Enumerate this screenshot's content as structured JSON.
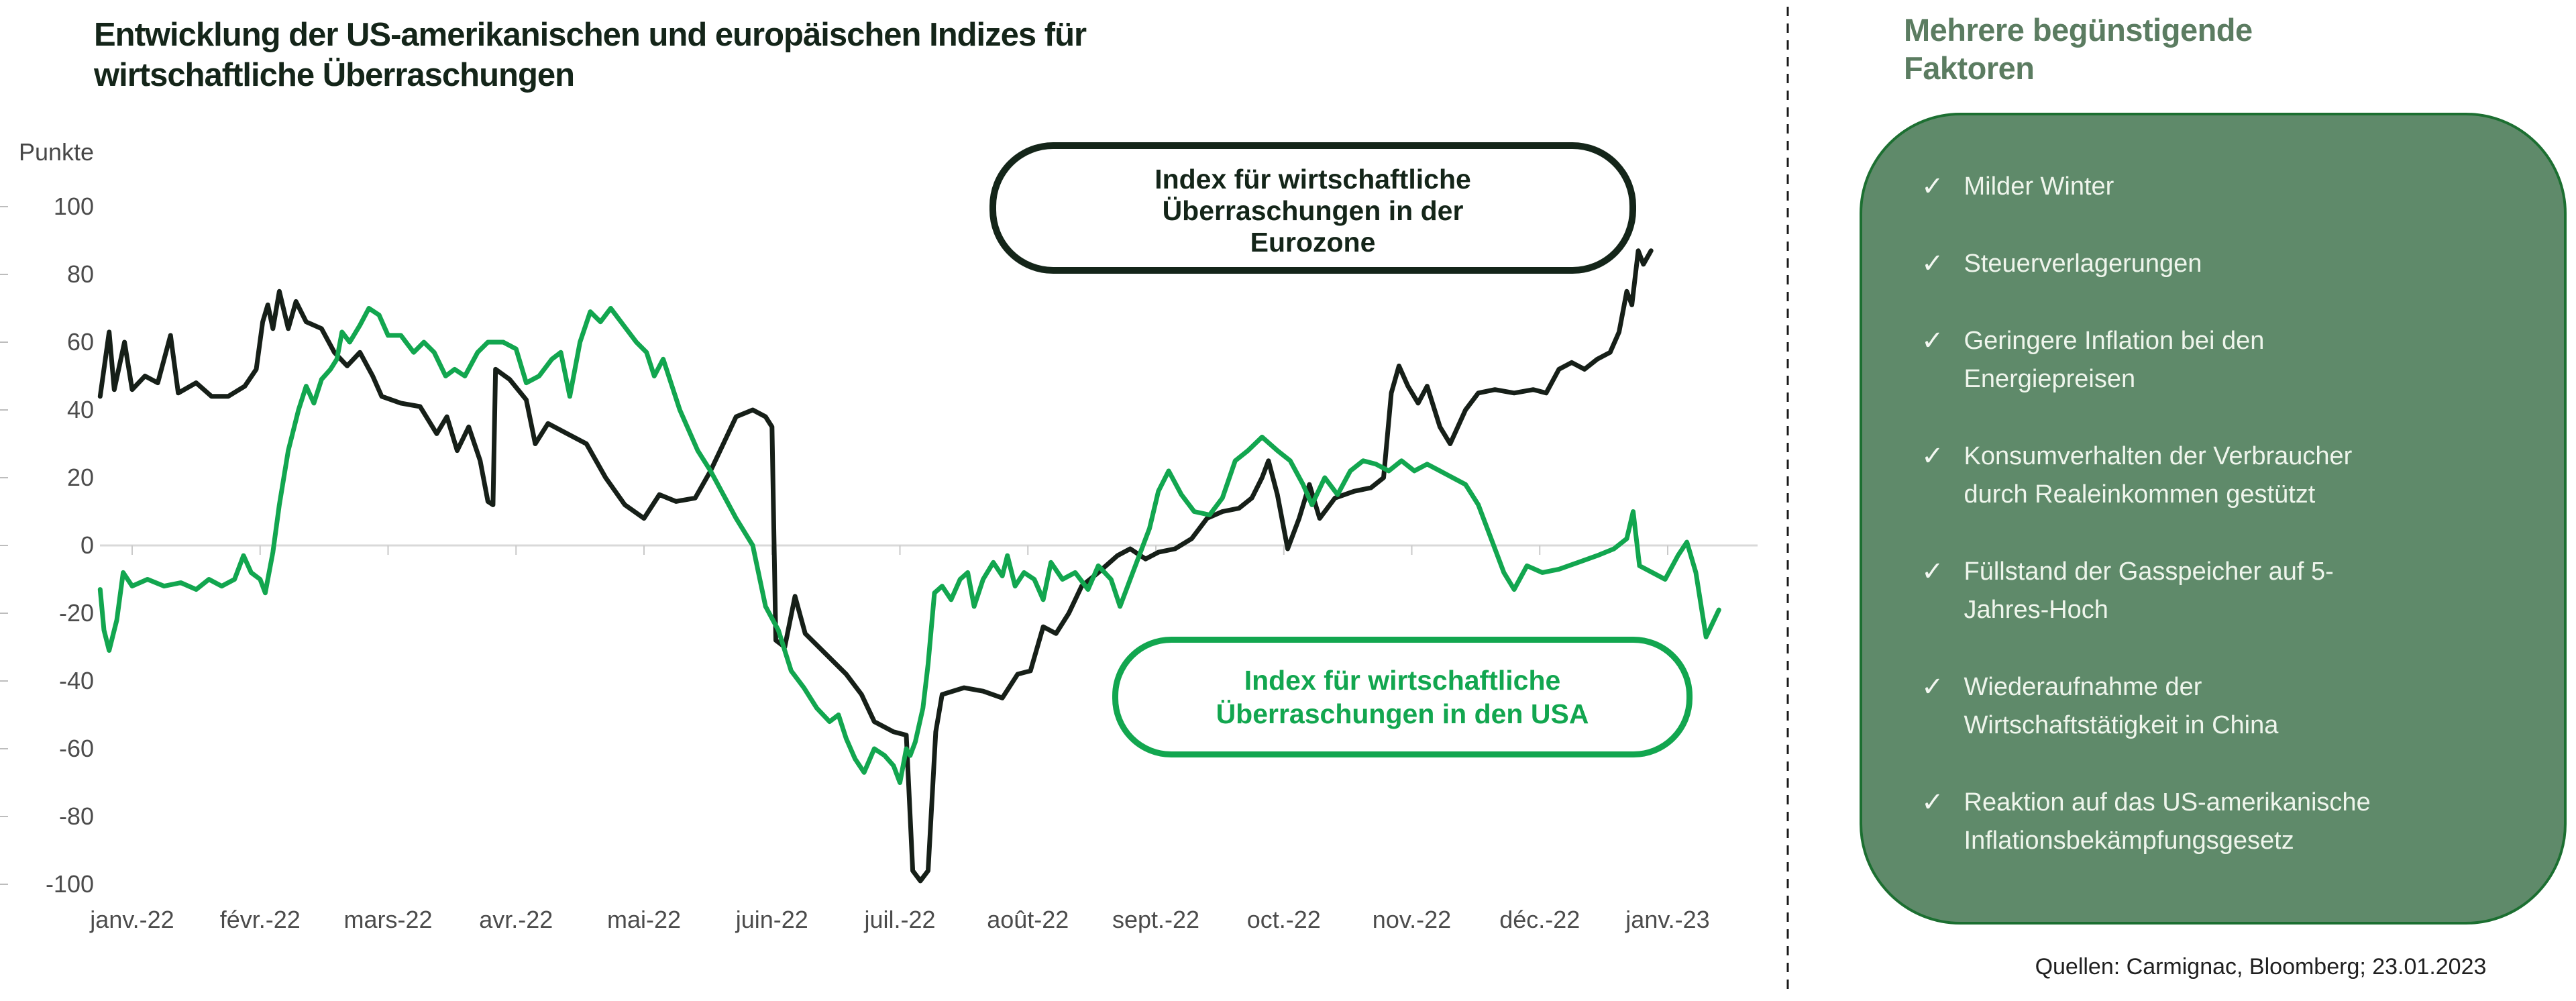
{
  "title": {
    "line1": "Entwicklung der US-amerikanischen und europäischen Indizes für",
    "line2": "wirtschaftliche Überraschungen"
  },
  "chart_data": {
    "type": "line",
    "title": "Entwicklung der US-amerikanischen und europäischen Indizes für wirtschaftliche Überraschungen",
    "ylabel": "Punkte",
    "xlabel": "",
    "ylim": [
      -100,
      100
    ],
    "grid": "zero-line-only",
    "legend_position": "inline-callouts",
    "yticks": [
      100,
      80,
      60,
      40,
      20,
      0,
      -20,
      -40,
      -60,
      -80,
      -100
    ],
    "x_categories": [
      "janv.-22",
      "févr.-22",
      "mars-22",
      "avr.-22",
      "mai-22",
      "juin-22",
      "juil.-22",
      "août-22",
      "sept.-22",
      "oct.-22",
      "nov.-22",
      "déc.-22",
      "janv.-23"
    ],
    "x_unit": "months since janv.-22 tick (0 = janv.-22, 12 = janv.-23)",
    "series": [
      {
        "name": "Index für wirtschaftliche Überraschungen in der Eurozone",
        "color": "#161f18",
        "points": [
          [
            -0.25,
            44
          ],
          [
            -0.18,
            63
          ],
          [
            -0.14,
            46
          ],
          [
            -0.06,
            60
          ],
          [
            0.0,
            46
          ],
          [
            0.1,
            50
          ],
          [
            0.2,
            48
          ],
          [
            0.3,
            62
          ],
          [
            0.36,
            45
          ],
          [
            0.5,
            48
          ],
          [
            0.62,
            44
          ],
          [
            0.75,
            44
          ],
          [
            0.88,
            47
          ],
          [
            0.97,
            52
          ],
          [
            1.02,
            66
          ],
          [
            1.06,
            71
          ],
          [
            1.1,
            64
          ],
          [
            1.15,
            75
          ],
          [
            1.22,
            64
          ],
          [
            1.28,
            72
          ],
          [
            1.36,
            66
          ],
          [
            1.48,
            64
          ],
          [
            1.58,
            57
          ],
          [
            1.68,
            53
          ],
          [
            1.78,
            57
          ],
          [
            1.88,
            50
          ],
          [
            1.95,
            44
          ],
          [
            2.1,
            42
          ],
          [
            2.25,
            41
          ],
          [
            2.38,
            33
          ],
          [
            2.46,
            38
          ],
          [
            2.54,
            28
          ],
          [
            2.63,
            35
          ],
          [
            2.72,
            25
          ],
          [
            2.78,
            13
          ],
          [
            2.82,
            12
          ],
          [
            2.84,
            52
          ],
          [
            2.95,
            49
          ],
          [
            3.08,
            43
          ],
          [
            3.15,
            30
          ],
          [
            3.25,
            36
          ],
          [
            3.4,
            33
          ],
          [
            3.55,
            30
          ],
          [
            3.7,
            20
          ],
          [
            3.85,
            12
          ],
          [
            4.0,
            8
          ],
          [
            4.12,
            15
          ],
          [
            4.25,
            13
          ],
          [
            4.4,
            14
          ],
          [
            4.52,
            22
          ],
          [
            4.62,
            30
          ],
          [
            4.72,
            38
          ],
          [
            4.85,
            40
          ],
          [
            4.95,
            38
          ],
          [
            5.0,
            35
          ],
          [
            5.03,
            -28
          ],
          [
            5.1,
            -30
          ],
          [
            5.18,
            -15
          ],
          [
            5.26,
            -26
          ],
          [
            5.42,
            -32
          ],
          [
            5.58,
            -38
          ],
          [
            5.7,
            -44
          ],
          [
            5.8,
            -52
          ],
          [
            5.95,
            -55
          ],
          [
            6.05,
            -56
          ],
          [
            6.1,
            -96
          ],
          [
            6.16,
            -99
          ],
          [
            6.22,
            -96
          ],
          [
            6.28,
            -55
          ],
          [
            6.33,
            -44
          ],
          [
            6.5,
            -42
          ],
          [
            6.65,
            -43
          ],
          [
            6.8,
            -45
          ],
          [
            6.92,
            -38
          ],
          [
            7.02,
            -37
          ],
          [
            7.12,
            -24
          ],
          [
            7.22,
            -26
          ],
          [
            7.32,
            -20
          ],
          [
            7.42,
            -12
          ],
          [
            7.55,
            -8
          ],
          [
            7.7,
            -3
          ],
          [
            7.8,
            -1
          ],
          [
            7.92,
            -4
          ],
          [
            8.02,
            -2
          ],
          [
            8.15,
            -1
          ],
          [
            8.28,
            2
          ],
          [
            8.4,
            8
          ],
          [
            8.52,
            10
          ],
          [
            8.65,
            11
          ],
          [
            8.75,
            14
          ],
          [
            8.83,
            20
          ],
          [
            8.88,
            25
          ],
          [
            8.95,
            15
          ],
          [
            9.03,
            -1
          ],
          [
            9.12,
            8
          ],
          [
            9.2,
            18
          ],
          [
            9.28,
            8
          ],
          [
            9.4,
            14
          ],
          [
            9.55,
            16
          ],
          [
            9.68,
            17
          ],
          [
            9.78,
            20
          ],
          [
            9.84,
            45
          ],
          [
            9.9,
            53
          ],
          [
            9.97,
            47
          ],
          [
            10.05,
            42
          ],
          [
            10.12,
            47
          ],
          [
            10.22,
            35
          ],
          [
            10.3,
            30
          ],
          [
            10.42,
            40
          ],
          [
            10.52,
            45
          ],
          [
            10.65,
            46
          ],
          [
            10.8,
            45
          ],
          [
            10.95,
            46
          ],
          [
            11.05,
            45
          ],
          [
            11.15,
            52
          ],
          [
            11.25,
            54
          ],
          [
            11.35,
            52
          ],
          [
            11.45,
            55
          ],
          [
            11.55,
            57
          ],
          [
            11.62,
            63
          ],
          [
            11.68,
            75
          ],
          [
            11.72,
            71
          ],
          [
            11.77,
            87
          ],
          [
            11.81,
            83
          ],
          [
            11.87,
            87
          ]
        ]
      },
      {
        "name": "Index für wirtschaftliche Überraschungen in den USA",
        "color": "#12a64f",
        "points": [
          [
            -0.25,
            -13
          ],
          [
            -0.22,
            -25
          ],
          [
            -0.18,
            -31
          ],
          [
            -0.12,
            -22
          ],
          [
            -0.07,
            -8
          ],
          [
            0.0,
            -12
          ],
          [
            0.12,
            -10
          ],
          [
            0.25,
            -12
          ],
          [
            0.38,
            -11
          ],
          [
            0.5,
            -13
          ],
          [
            0.6,
            -10
          ],
          [
            0.7,
            -12
          ],
          [
            0.8,
            -10
          ],
          [
            0.87,
            -3
          ],
          [
            0.93,
            -8
          ],
          [
            1.0,
            -10
          ],
          [
            1.04,
            -14
          ],
          [
            1.1,
            -2
          ],
          [
            1.15,
            12
          ],
          [
            1.22,
            28
          ],
          [
            1.3,
            40
          ],
          [
            1.36,
            47
          ],
          [
            1.42,
            42
          ],
          [
            1.48,
            49
          ],
          [
            1.55,
            52
          ],
          [
            1.6,
            55
          ],
          [
            1.64,
            63
          ],
          [
            1.7,
            60
          ],
          [
            1.78,
            65
          ],
          [
            1.85,
            70
          ],
          [
            1.93,
            68
          ],
          [
            2.0,
            62
          ],
          [
            2.1,
            62
          ],
          [
            2.2,
            57
          ],
          [
            2.28,
            60
          ],
          [
            2.36,
            57
          ],
          [
            2.45,
            50
          ],
          [
            2.52,
            52
          ],
          [
            2.6,
            50
          ],
          [
            2.7,
            57
          ],
          [
            2.78,
            60
          ],
          [
            2.9,
            60
          ],
          [
            3.0,
            58
          ],
          [
            3.08,
            48
          ],
          [
            3.18,
            50
          ],
          [
            3.28,
            55
          ],
          [
            3.35,
            57
          ],
          [
            3.42,
            44
          ],
          [
            3.5,
            60
          ],
          [
            3.58,
            69
          ],
          [
            3.66,
            66
          ],
          [
            3.74,
            70
          ],
          [
            3.84,
            65
          ],
          [
            3.94,
            60
          ],
          [
            4.02,
            57
          ],
          [
            4.08,
            50
          ],
          [
            4.15,
            55
          ],
          [
            4.28,
            40
          ],
          [
            4.42,
            28
          ],
          [
            4.52,
            22
          ],
          [
            4.62,
            15
          ],
          [
            4.72,
            8
          ],
          [
            4.85,
            0
          ],
          [
            4.95,
            -18
          ],
          [
            5.05,
            -25
          ],
          [
            5.15,
            -37
          ],
          [
            5.25,
            -42
          ],
          [
            5.35,
            -48
          ],
          [
            5.45,
            -52
          ],
          [
            5.52,
            -50
          ],
          [
            5.58,
            -57
          ],
          [
            5.65,
            -63
          ],
          [
            5.72,
            -67
          ],
          [
            5.8,
            -60
          ],
          [
            5.88,
            -62
          ],
          [
            5.95,
            -65
          ],
          [
            6.0,
            -70
          ],
          [
            6.05,
            -60
          ],
          [
            6.08,
            -62
          ],
          [
            6.12,
            -58
          ],
          [
            6.18,
            -48
          ],
          [
            6.22,
            -35
          ],
          [
            6.27,
            -14
          ],
          [
            6.33,
            -12
          ],
          [
            6.4,
            -16
          ],
          [
            6.47,
            -10
          ],
          [
            6.53,
            -8
          ],
          [
            6.58,
            -18
          ],
          [
            6.65,
            -10
          ],
          [
            6.73,
            -5
          ],
          [
            6.8,
            -9
          ],
          [
            6.84,
            -3
          ],
          [
            6.9,
            -12
          ],
          [
            6.97,
            -8
          ],
          [
            7.05,
            -10
          ],
          [
            7.12,
            -16
          ],
          [
            7.18,
            -5
          ],
          [
            7.27,
            -10
          ],
          [
            7.37,
            -8
          ],
          [
            7.47,
            -13
          ],
          [
            7.55,
            -6
          ],
          [
            7.65,
            -10
          ],
          [
            7.72,
            -18
          ],
          [
            7.8,
            -10
          ],
          [
            7.88,
            -2
          ],
          [
            7.95,
            5
          ],
          [
            8.02,
            16
          ],
          [
            8.1,
            22
          ],
          [
            8.2,
            15
          ],
          [
            8.3,
            10
          ],
          [
            8.42,
            9
          ],
          [
            8.52,
            14
          ],
          [
            8.62,
            25
          ],
          [
            8.72,
            28
          ],
          [
            8.83,
            32
          ],
          [
            8.95,
            28
          ],
          [
            9.05,
            25
          ],
          [
            9.15,
            18
          ],
          [
            9.22,
            12
          ],
          [
            9.32,
            20
          ],
          [
            9.42,
            15
          ],
          [
            9.52,
            22
          ],
          [
            9.62,
            25
          ],
          [
            9.72,
            24
          ],
          [
            9.82,
            22
          ],
          [
            9.92,
            25
          ],
          [
            10.02,
            22
          ],
          [
            10.12,
            24
          ],
          [
            10.22,
            22
          ],
          [
            10.32,
            20
          ],
          [
            10.42,
            18
          ],
          [
            10.52,
            12
          ],
          [
            10.62,
            2
          ],
          [
            10.72,
            -8
          ],
          [
            10.8,
            -13
          ],
          [
            10.9,
            -6
          ],
          [
            11.02,
            -8
          ],
          [
            11.15,
            -7
          ],
          [
            11.3,
            -5
          ],
          [
            11.45,
            -3
          ],
          [
            11.58,
            -1
          ],
          [
            11.68,
            2
          ],
          [
            11.73,
            10
          ],
          [
            11.78,
            -6
          ],
          [
            11.88,
            -8
          ],
          [
            11.98,
            -10
          ],
          [
            12.08,
            -3
          ],
          [
            12.15,
            1
          ],
          [
            12.22,
            -8
          ],
          [
            12.3,
            -27
          ],
          [
            12.4,
            -19
          ]
        ]
      }
    ]
  },
  "callouts": {
    "eurozone": {
      "lines": [
        "Index für wirtschaftliche",
        "Überraschungen in der",
        "Eurozone"
      ]
    },
    "usa": {
      "lines": [
        "Index für wirtschaftliche",
        "Überraschungen in den USA"
      ]
    }
  },
  "sidebar": {
    "title_line1": "Mehrere begünstigende",
    "title_line2": "Faktoren",
    "check_glyph": "✓",
    "items": [
      {
        "lines": [
          "Milder Winter"
        ]
      },
      {
        "lines": [
          "Steuerverlagerungen"
        ]
      },
      {
        "lines": [
          "Geringere Inflation bei den",
          "Energiepreisen"
        ]
      },
      {
        "lines": [
          "Konsumverhalten der Verbraucher",
          "durch Realeinkommen gestützt"
        ]
      },
      {
        "lines": [
          "Füllstand der Gasspeicher auf 5-",
          "Jahres-Hoch"
        ]
      },
      {
        "lines": [
          "Wiederaufnahme der",
          "Wirtschaftstätigkeit in China"
        ]
      },
      {
        "lines": [
          "Reaktion auf das US-amerikanische",
          "Inflationsbekämpfungsgesetz"
        ]
      }
    ]
  },
  "source": "Quellen: Carmignac, Bloomberg; 23.01.2023",
  "colors": {
    "eurozone_line": "#161f18",
    "usa_line": "#12a64f",
    "panel_fill": "#5f8a6a",
    "panel_border": "#1c6f31",
    "panel_title": "#5b7c61",
    "axis_text": "#4c4c4c",
    "zero_line": "#d9d9d9",
    "divider": "#1a1a1a"
  }
}
